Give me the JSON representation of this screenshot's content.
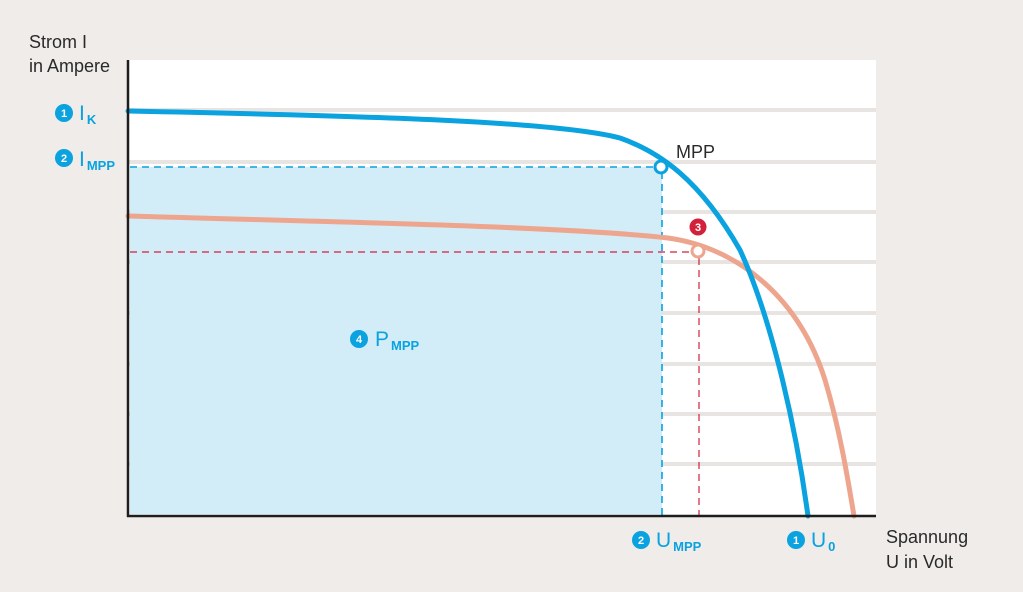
{
  "colors": {
    "background": "#efecea",
    "plot_background": "#ffffff",
    "grid": "#e7e4e1",
    "axis": "#1e1e1e",
    "blue": "#0aa2df",
    "salmon": "#eea58e",
    "red": "#d3203b",
    "area_fill": "#d2edf8",
    "text": "#2a2a2a"
  },
  "y_axis": {
    "line1": "Strom I",
    "line2": "in Ampere"
  },
  "x_axis": {
    "line1": "Spannung",
    "line2": "U in Volt"
  },
  "labels": {
    "ik": {
      "badge": "1",
      "main": "I",
      "sub": "K"
    },
    "impp": {
      "badge": "2",
      "main": "I",
      "sub": "MPP"
    },
    "umpp": {
      "badge": "2",
      "main": "U",
      "sub": "MPP"
    },
    "u0": {
      "badge": "1",
      "main": "U",
      "sub": "0"
    },
    "pmpp": {
      "badge": "4",
      "main": "P",
      "sub": "MPP"
    },
    "mpp_point": "MPP",
    "point3_badge": "3"
  }
}
